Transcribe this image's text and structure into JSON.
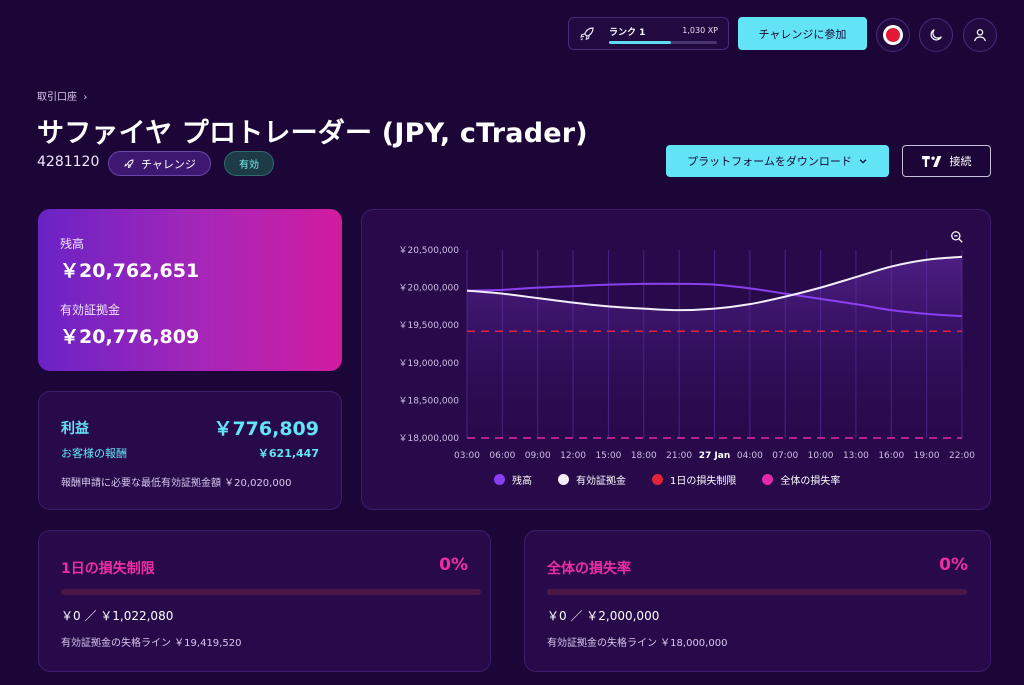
{
  "topbar": {
    "rank_label": "ランク 1",
    "xp_label": "1,030 XP",
    "rank_progress": 0.57,
    "join_button": "チャレンジに参加"
  },
  "header": {
    "breadcrumb": "取引口座",
    "title": "サファイヤ プロトレーダー (JPY, cTrader)",
    "account_id": "4281120",
    "badge_challenge": "チャレンジ",
    "badge_status": "有効",
    "download_button": "プラットフォームをダウンロード",
    "connect_button": "接続"
  },
  "balance_card": {
    "balance_label": "残高",
    "balance_value": "￥20,762,651",
    "equity_label": "有効証拠金",
    "equity_value": "￥20,776,809"
  },
  "profit_card": {
    "profit_label": "利益",
    "profit_value": "￥776,809",
    "reward_label": "お客様の報酬",
    "reward_value": "￥621,447",
    "note": "報酬申請に必要な最低有効証拠金額 ￥20,020,000"
  },
  "chart_data": {
    "type": "line",
    "x": [
      "03:00",
      "06:00",
      "09:00",
      "12:00",
      "15:00",
      "18:00",
      "21:00",
      "27 Jan",
      "04:00",
      "07:00",
      "10:00",
      "13:00",
      "16:00",
      "19:00",
      "22:00"
    ],
    "y_ticks": [
      "￥20,500,000",
      "￥20,000,000",
      "￥19,500,000",
      "￥19,000,000",
      "￥18,500,000",
      "￥18,000,000"
    ],
    "ylim": [
      18000000,
      20500000
    ],
    "series": [
      {
        "name": "残高",
        "color": "#8a3ff0",
        "values": [
          19960000,
          19970000,
          20000000,
          20020000,
          20040000,
          20050000,
          20050000,
          20040000,
          19990000,
          19920000,
          19850000,
          19780000,
          19700000,
          19650000,
          19620000
        ]
      },
      {
        "name": "有効証拠金",
        "color": "#f3eef8",
        "values": [
          19960000,
          19920000,
          19860000,
          19800000,
          19750000,
          19720000,
          19700000,
          19720000,
          19780000,
          19880000,
          20000000,
          20140000,
          20280000,
          20370000,
          20410000
        ]
      },
      {
        "name": "1日の損失制限",
        "color": "#e0243c",
        "values": [
          19419520,
          19419520,
          19419520,
          19419520,
          19419520,
          19419520,
          19419520,
          19419520,
          19419520,
          19419520,
          19419520,
          19419520,
          19419520,
          19419520,
          19419520
        ]
      },
      {
        "name": "全体の損失率",
        "color": "#e42aa8",
        "values": [
          18000000,
          18000000,
          18000000,
          18000000,
          18000000,
          18000000,
          18000000,
          18000000,
          18000000,
          18000000,
          18000000,
          18000000,
          18000000,
          18000000,
          18000000
        ]
      }
    ],
    "grid": true,
    "legend_position": "bottom"
  },
  "daily_limit": {
    "title": "1日の損失制限",
    "percent_label": "0%",
    "percent": 0,
    "amount": "￥0 ／ ￥1,022,080",
    "breach_line": "有効証拠金の失格ライン ￥19,419,520"
  },
  "total_limit": {
    "title": "全体の損失率",
    "percent_label": "0%",
    "percent": 0,
    "amount": "￥0 ／ ￥2,000,000",
    "breach_line": "有効証拠金の失格ライン ￥18,000,000"
  }
}
